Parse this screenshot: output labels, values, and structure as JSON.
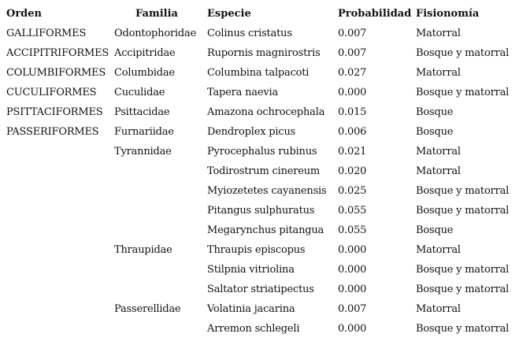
{
  "table": {
    "headers": {
      "orden": "Orden",
      "familia": "Familia",
      "especie": "Especie",
      "probabilidad": "Probabilidad",
      "fisionomia": "Fisionomía"
    },
    "rows": [
      {
        "orden": "GALLIFORMES",
        "familia": "Odontophoridae",
        "especie": "Colinus cristatus",
        "probabilidad": "0.007",
        "fisionomia": "Matorral"
      },
      {
        "orden": "ACCIPITRIFORMES",
        "familia": "Accipitridae",
        "especie": "Rupornis magnirostris",
        "probabilidad": "0.007",
        "fisionomia": "Bosque y matorral"
      },
      {
        "orden": "COLUMBIFORMES",
        "familia": "Columbidae",
        "especie": "Columbina talpacoti",
        "probabilidad": "0.027",
        "fisionomia": "Matorral"
      },
      {
        "orden": "CUCULIFORMES",
        "familia": "Cuculidae",
        "especie": "Tapera naevia",
        "probabilidad": "0.000",
        "fisionomia": "Bosque y matorral"
      },
      {
        "orden": "PSITTACIFORMES",
        "familia": "Psittacidae",
        "especie": "Amazona ochrocephala",
        "probabilidad": "0.015",
        "fisionomia": "Bosque"
      },
      {
        "orden": "PASSERIFORMES",
        "familia": "Furnariidae",
        "especie": "Dendroplex picus",
        "probabilidad": "0.006",
        "fisionomia": "Bosque"
      },
      {
        "orden": "",
        "familia": "Tyrannidae",
        "especie": "Pyrocephalus rubinus",
        "probabilidad": "0.021",
        "fisionomia": "Matorral"
      },
      {
        "orden": "",
        "familia": "",
        "especie": "Todirostrum cinereum",
        "probabilidad": "0.020",
        "fisionomia": "Matorral"
      },
      {
        "orden": "",
        "familia": "",
        "especie": "Myiozetetes cayanensis",
        "probabilidad": "0.025",
        "fisionomia": "Bosque y matorral"
      },
      {
        "orden": "",
        "familia": "",
        "especie": "Pitangus sulphuratus",
        "probabilidad": "0.055",
        "fisionomia": "Bosque y matorral"
      },
      {
        "orden": "",
        "familia": "",
        "especie": "Megarynchus pitangua",
        "probabilidad": "0.055",
        "fisionomia": "Bosque"
      },
      {
        "orden": "",
        "familia": "Thraupidae",
        "especie": "Thraupis episcopus",
        "probabilidad": "0.000",
        "fisionomia": "Matorral"
      },
      {
        "orden": "",
        "familia": "",
        "especie": "Stilpnia vitriolina",
        "probabilidad": "0.000",
        "fisionomia": "Bosque y matorral"
      },
      {
        "orden": "",
        "familia": "",
        "especie": "Saltator striatipectus",
        "probabilidad": "0.000",
        "fisionomia": "Bosque y matorral"
      },
      {
        "orden": "",
        "familia": "Passerellidae",
        "especie": "Volatinia jacarina",
        "probabilidad": "0.007",
        "fisionomia": "Matorral"
      },
      {
        "orden": "",
        "familia": "",
        "especie": "Arremon schlegeli",
        "probabilidad": "0.000",
        "fisionomia": "Bosque y matorral"
      }
    ]
  }
}
